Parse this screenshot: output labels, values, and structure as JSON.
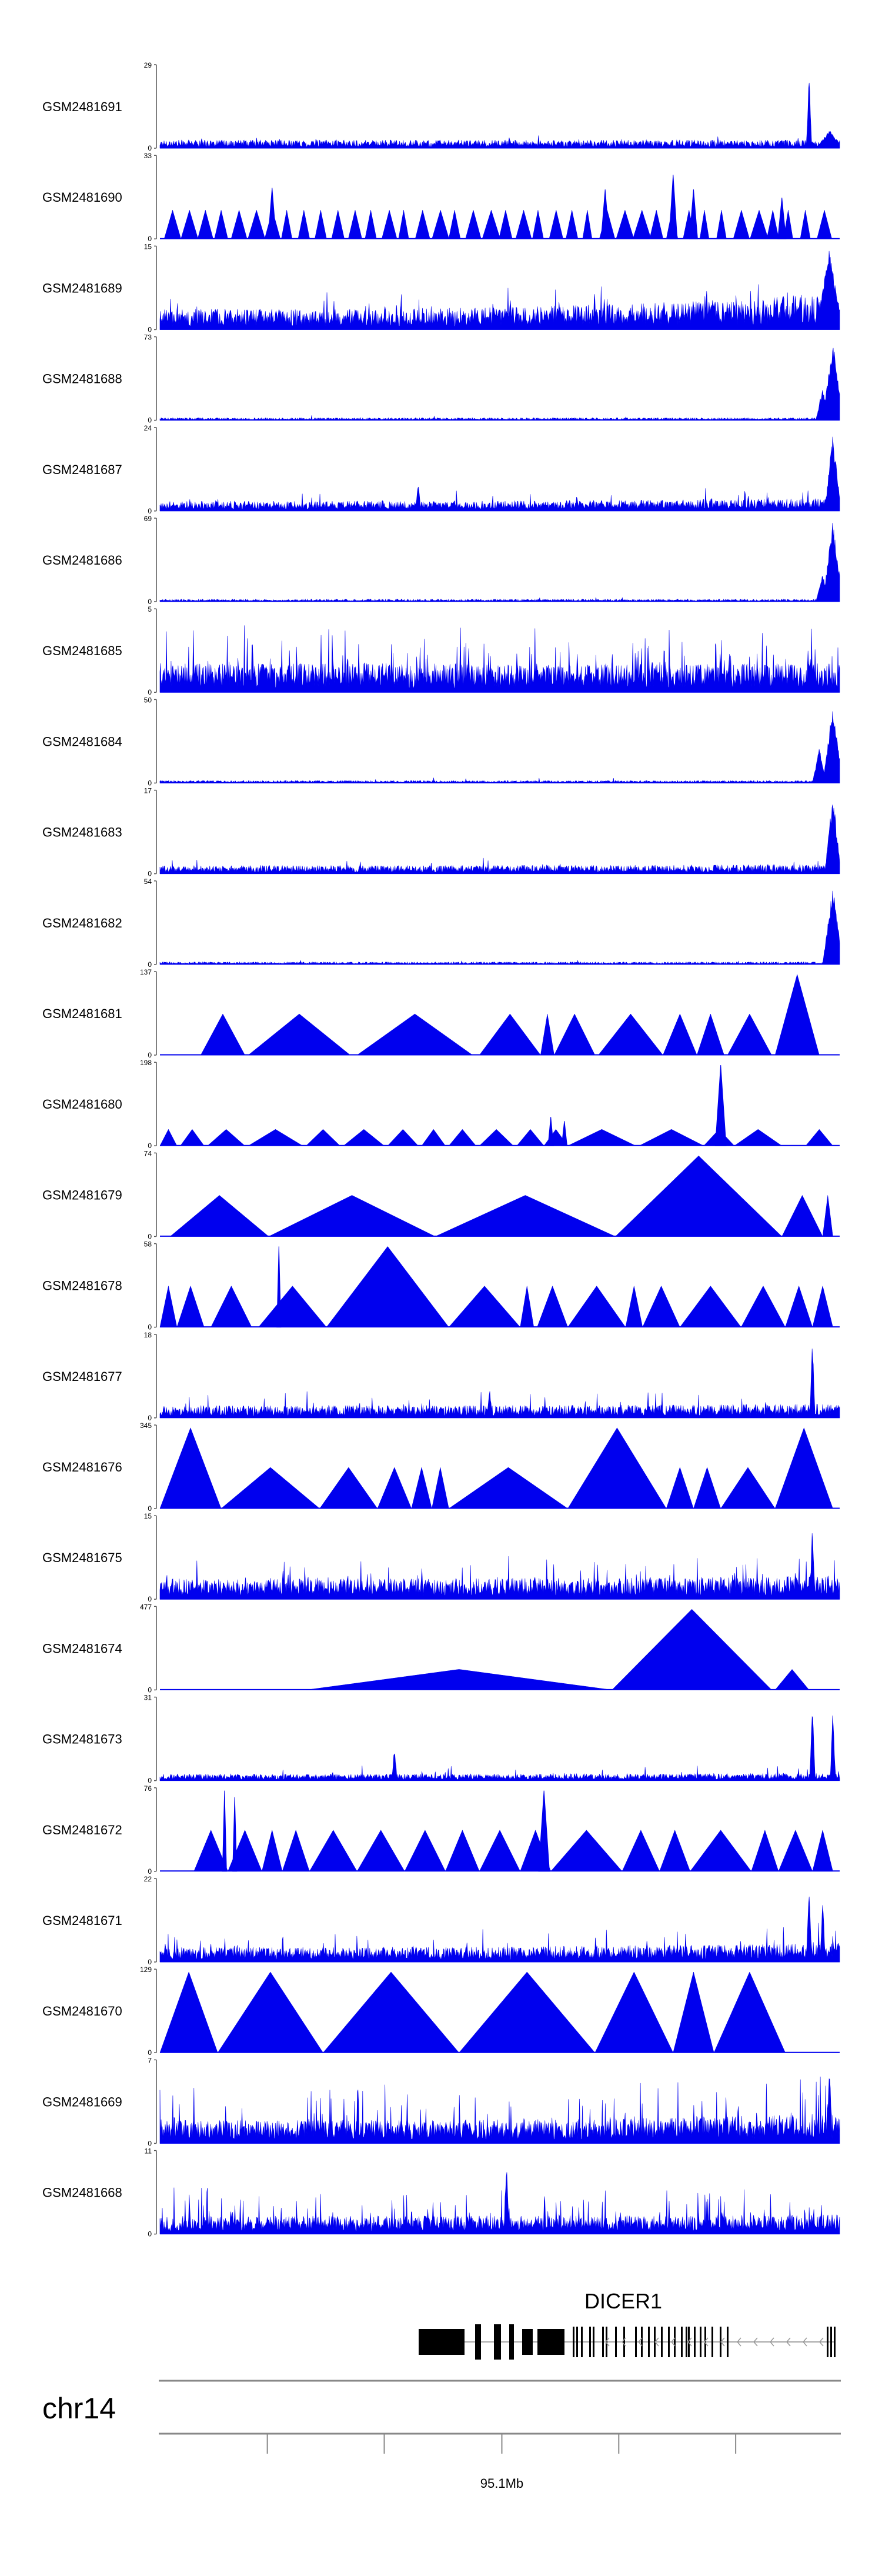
{
  "chart_data": {
    "type": "area",
    "title": "",
    "genome_track": {
      "chromosome": "chr14",
      "gene": "DICER1",
      "axis_ticks": [
        {
          "label": "",
          "pos": 0.158
        },
        {
          "label": "",
          "pos": 0.33
        },
        {
          "label": "95.1Mb",
          "pos": 0.503
        },
        {
          "label": "",
          "pos": 0.675
        },
        {
          "label": "",
          "pos": 0.847
        }
      ]
    },
    "tracks": [
      {
        "name": "GSM2481691",
        "ymax": 29,
        "ymin": 0,
        "style": "noise",
        "base": 0.1,
        "spikiness": 0.15,
        "peaks": [
          {
            "x": 0.955,
            "h": 0.98,
            "w": 0.004
          },
          {
            "x": 0.985,
            "h": 0.22,
            "w": 0.02
          }
        ]
      },
      {
        "name": "GSM2481690",
        "ymax": 33,
        "ymin": 0,
        "style": "tri",
        "count": 40,
        "h": 0.35,
        "peaks": [
          {
            "x": 0.165,
            "h": 0.62
          },
          {
            "x": 0.655,
            "h": 0.6
          },
          {
            "x": 0.755,
            "h": 0.78
          },
          {
            "x": 0.785,
            "h": 0.6
          },
          {
            "x": 0.915,
            "h": 0.5
          }
        ]
      },
      {
        "name": "GSM2481689",
        "ymax": 15,
        "ymin": 0,
        "style": "noise",
        "base": 0.25,
        "spikiness": 0.45,
        "rise": 0.55,
        "peaks": [
          {
            "x": 0.985,
            "h": 0.98,
            "w": 0.02
          }
        ]
      },
      {
        "name": "GSM2481688",
        "ymax": 73,
        "ymin": 0,
        "style": "noise",
        "base": 0.03,
        "spikiness": 0.06,
        "peaks": [
          {
            "x": 0.99,
            "h": 0.98,
            "w": 0.015
          },
          {
            "x": 0.975,
            "h": 0.4,
            "w": 0.01
          }
        ]
      },
      {
        "name": "GSM2481687",
        "ymax": 24,
        "ymin": 0,
        "style": "noise",
        "base": 0.12,
        "spikiness": 0.25,
        "rise": 0.2,
        "peaks": [
          {
            "x": 0.99,
            "h": 0.95,
            "w": 0.012
          },
          {
            "x": 0.38,
            "h": 0.35,
            "w": 0.004
          }
        ]
      },
      {
        "name": "GSM2481686",
        "ymax": 69,
        "ymin": 0,
        "style": "noise",
        "base": 0.03,
        "spikiness": 0.06,
        "peaks": [
          {
            "x": 0.99,
            "h": 0.98,
            "w": 0.015
          },
          {
            "x": 0.975,
            "h": 0.35,
            "w": 0.01
          }
        ]
      },
      {
        "name": "GSM2481685",
        "ymax": 5,
        "ymin": 0,
        "style": "noise",
        "base": 0.35,
        "spikiness": 0.9,
        "rise": 0.0,
        "peaks": []
      },
      {
        "name": "GSM2481684",
        "ymax": 50,
        "ymin": 0,
        "style": "noise",
        "base": 0.03,
        "spikiness": 0.07,
        "peaks": [
          {
            "x": 0.99,
            "h": 0.95,
            "w": 0.015
          },
          {
            "x": 0.97,
            "h": 0.45,
            "w": 0.01
          }
        ]
      },
      {
        "name": "GSM2481683",
        "ymax": 17,
        "ymin": 0,
        "style": "noise",
        "base": 0.1,
        "spikiness": 0.2,
        "rise": 0.1,
        "peaks": [
          {
            "x": 0.99,
            "h": 0.98,
            "w": 0.012
          }
        ]
      },
      {
        "name": "GSM2481682",
        "ymax": 54,
        "ymin": 0,
        "style": "noise",
        "base": 0.03,
        "spikiness": 0.07,
        "peaks": [
          {
            "x": 0.99,
            "h": 0.98,
            "w": 0.015
          }
        ]
      },
      {
        "name": "GSM2481681",
        "ymax": 137,
        "ymin": 0,
        "style": "tri",
        "triangles": [
          [
            0.06,
            0.125,
            0.5
          ],
          [
            0.13,
            0.28,
            0.5
          ],
          [
            0.29,
            0.46,
            0.5
          ],
          [
            0.47,
            0.56,
            0.5
          ],
          [
            0.56,
            0.58,
            0.5
          ],
          [
            0.58,
            0.64,
            0.5
          ],
          [
            0.645,
            0.74,
            0.5
          ],
          [
            0.74,
            0.79,
            0.5
          ],
          [
            0.79,
            0.83,
            0.5
          ],
          [
            0.835,
            0.9,
            0.5
          ],
          [
            0.905,
            0.97,
            0.98
          ]
        ],
        "peaks": []
      },
      {
        "name": "GSM2481680",
        "ymax": 198,
        "ymin": 0,
        "style": "tri",
        "triangles": [
          [
            0.0,
            0.025,
            0.2
          ],
          [
            0.03,
            0.065,
            0.2
          ],
          [
            0.07,
            0.125,
            0.2
          ],
          [
            0.13,
            0.21,
            0.2
          ],
          [
            0.215,
            0.265,
            0.2
          ],
          [
            0.27,
            0.33,
            0.2
          ],
          [
            0.335,
            0.38,
            0.2
          ],
          [
            0.385,
            0.42,
            0.2
          ],
          [
            0.425,
            0.465,
            0.2
          ],
          [
            0.47,
            0.52,
            0.2
          ],
          [
            0.525,
            0.565,
            0.2
          ],
          [
            0.565,
            0.6,
            0.2
          ],
          [
            0.6,
            0.7,
            0.2
          ],
          [
            0.705,
            0.8,
            0.2
          ],
          [
            0.8,
            0.845,
            0.2
          ],
          [
            0.845,
            0.915,
            0.2
          ],
          [
            0.95,
            0.99,
            0.2
          ]
        ],
        "peaks": [
          {
            "x": 0.825,
            "h": 0.98,
            "w": 0.008
          },
          {
            "x": 0.575,
            "h": 0.35,
            "w": 0.004
          },
          {
            "x": 0.595,
            "h": 0.3,
            "w": 0.004
          }
        ]
      },
      {
        "name": "GSM2481679",
        "ymax": 74,
        "ymin": 0,
        "style": "tri",
        "triangles": [
          [
            0.015,
            0.16,
            0.5
          ],
          [
            0.16,
            0.405,
            0.5
          ],
          [
            0.405,
            0.67,
            0.5
          ],
          [
            0.67,
            0.915,
            0.98
          ],
          [
            0.915,
            0.975,
            0.5
          ],
          [
            0.975,
            0.99,
            0.5
          ]
        ],
        "peaks": []
      },
      {
        "name": "GSM2481678",
        "ymax": 58,
        "ymin": 0,
        "style": "tri",
        "triangles": [
          [
            0.0,
            0.025,
            0.5
          ],
          [
            0.025,
            0.065,
            0.5
          ],
          [
            0.075,
            0.135,
            0.5
          ],
          [
            0.145,
            0.245,
            0.5
          ],
          [
            0.245,
            0.425,
            0.98
          ],
          [
            0.425,
            0.53,
            0.5
          ],
          [
            0.53,
            0.55,
            0.5
          ],
          [
            0.555,
            0.6,
            0.5
          ],
          [
            0.6,
            0.685,
            0.5
          ],
          [
            0.685,
            0.71,
            0.5
          ],
          [
            0.71,
            0.765,
            0.5
          ],
          [
            0.765,
            0.855,
            0.5
          ],
          [
            0.855,
            0.92,
            0.5
          ],
          [
            0.92,
            0.96,
            0.5
          ],
          [
            0.96,
            0.99,
            0.5
          ]
        ],
        "peaks": [
          {
            "x": 0.175,
            "h": 0.98,
            "w": 0.003
          }
        ]
      },
      {
        "name": "GSM2481677",
        "ymax": 18,
        "ymin": 0,
        "style": "noise",
        "base": 0.15,
        "spikiness": 0.35,
        "rise": 0.1,
        "peaks": [
          {
            "x": 0.96,
            "h": 0.98,
            "w": 0.004
          },
          {
            "x": 0.485,
            "h": 0.4,
            "w": 0.004
          }
        ]
      },
      {
        "name": "GSM2481676",
        "ymax": 345,
        "ymin": 0,
        "style": "tri",
        "triangles": [
          [
            0.0,
            0.09,
            0.98
          ],
          [
            0.09,
            0.235,
            0.5
          ],
          [
            0.235,
            0.32,
            0.5
          ],
          [
            0.32,
            0.37,
            0.5
          ],
          [
            0.37,
            0.4,
            0.5
          ],
          [
            0.4,
            0.425,
            0.5
          ],
          [
            0.425,
            0.6,
            0.5
          ],
          [
            0.6,
            0.745,
            0.98
          ],
          [
            0.745,
            0.785,
            0.5
          ],
          [
            0.785,
            0.825,
            0.5
          ],
          [
            0.825,
            0.905,
            0.5
          ],
          [
            0.905,
            0.99,
            0.98
          ]
        ],
        "peaks": []
      },
      {
        "name": "GSM2481675",
        "ymax": 15,
        "ymin": 0,
        "style": "noise",
        "base": 0.25,
        "spikiness": 0.55,
        "rise": 0.1,
        "peaks": [
          {
            "x": 0.96,
            "h": 0.98,
            "w": 0.004
          }
        ]
      },
      {
        "name": "GSM2481674",
        "ymax": 477,
        "ymin": 0,
        "style": "tri",
        "triangles": [
          [
            0.215,
            0.665,
            0.25
          ],
          [
            0.665,
            0.9,
            0.98
          ],
          [
            0.905,
            0.955,
            0.25
          ]
        ],
        "peaks": []
      },
      {
        "name": "GSM2481673",
        "ymax": 31,
        "ymin": 0,
        "style": "noise",
        "base": 0.08,
        "spikiness": 0.2,
        "rise": 0.1,
        "peaks": [
          {
            "x": 0.96,
            "h": 0.98,
            "w": 0.004
          },
          {
            "x": 0.99,
            "h": 0.9,
            "w": 0.004
          },
          {
            "x": 0.345,
            "h": 0.45,
            "w": 0.004
          }
        ]
      },
      {
        "name": "GSM2481672",
        "ymax": 76,
        "ymin": 0,
        "style": "tri",
        "triangles": [
          [
            0.05,
            0.1,
            0.5
          ],
          [
            0.1,
            0.15,
            0.5
          ],
          [
            0.15,
            0.18,
            0.5
          ],
          [
            0.18,
            0.22,
            0.5
          ],
          [
            0.22,
            0.29,
            0.5
          ],
          [
            0.29,
            0.36,
            0.5
          ],
          [
            0.36,
            0.42,
            0.5
          ],
          [
            0.42,
            0.47,
            0.5
          ],
          [
            0.47,
            0.53,
            0.5
          ],
          [
            0.53,
            0.575,
            0.5
          ],
          [
            0.575,
            0.68,
            0.5
          ],
          [
            0.68,
            0.735,
            0.5
          ],
          [
            0.735,
            0.78,
            0.5
          ],
          [
            0.78,
            0.87,
            0.5
          ],
          [
            0.87,
            0.91,
            0.5
          ],
          [
            0.91,
            0.96,
            0.5
          ],
          [
            0.96,
            0.99,
            0.5
          ]
        ],
        "peaks": [
          {
            "x": 0.095,
            "h": 0.98,
            "w": 0.003
          },
          {
            "x": 0.11,
            "h": 0.9,
            "w": 0.003
          },
          {
            "x": 0.565,
            "h": 0.98,
            "w": 0.008
          }
        ]
      },
      {
        "name": "GSM2481671",
        "ymax": 22,
        "ymin": 0,
        "style": "noise",
        "base": 0.18,
        "spikiness": 0.45,
        "rise": 0.2,
        "peaks": [
          {
            "x": 0.955,
            "h": 0.98,
            "w": 0.004
          },
          {
            "x": 0.975,
            "h": 0.8,
            "w": 0.004
          }
        ]
      },
      {
        "name": "GSM2481670",
        "ymax": 129,
        "ymin": 0,
        "style": "tri",
        "triangles": [
          [
            0.0,
            0.085,
            0.98
          ],
          [
            0.085,
            0.24,
            0.98
          ],
          [
            0.24,
            0.44,
            0.98
          ],
          [
            0.44,
            0.64,
            0.98
          ],
          [
            0.64,
            0.755,
            0.98
          ],
          [
            0.755,
            0.815,
            0.98
          ],
          [
            0.815,
            0.92,
            0.98
          ]
        ],
        "peaks": []
      },
      {
        "name": "GSM2481669",
        "ymax": 7,
        "ymin": 0,
        "style": "noise",
        "base": 0.28,
        "spikiness": 0.8,
        "rise": 0.2,
        "peaks": [
          {
            "x": 0.985,
            "h": 0.98,
            "w": 0.004
          }
        ]
      },
      {
        "name": "GSM2481668",
        "ymax": 11,
        "ymin": 0,
        "style": "noise",
        "base": 0.22,
        "spikiness": 0.7,
        "rise": 0.05,
        "peaks": [
          {
            "x": 0.51,
            "h": 0.95,
            "w": 0.004
          }
        ]
      }
    ]
  }
}
